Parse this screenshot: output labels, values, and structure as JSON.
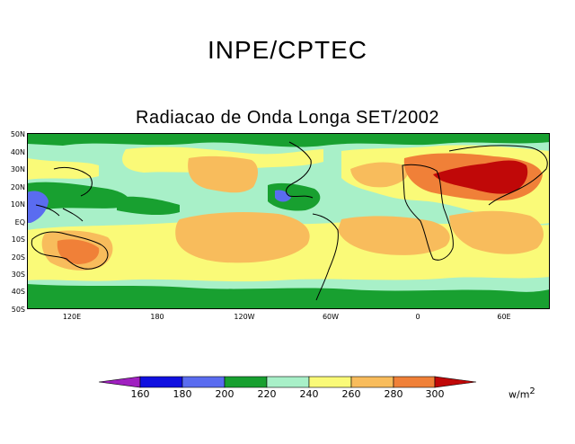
{
  "header": {
    "title": "INPE/CPTEC"
  },
  "map": {
    "subtitle": "Radiacao de Onda Longa SET/2002",
    "lat_labels": [
      "50N",
      "40N",
      "30N",
      "20N",
      "10N",
      "EQ",
      "10S",
      "20S",
      "30S",
      "40S",
      "50S"
    ],
    "lon_labels": [
      "120E",
      "180",
      "120W",
      "60W",
      "0",
      "60E"
    ]
  },
  "legend": {
    "levels": [
      "160",
      "180",
      "200",
      "220",
      "240",
      "260",
      "280",
      "300"
    ],
    "unit": "w/m",
    "unit_exp": "2",
    "colors": [
      "#a020c0",
      "#1010e0",
      "#5a6cf0",
      "#18a030",
      "#a8f0c8",
      "#fafa78",
      "#f8bc5c",
      "#f08038",
      "#c00808"
    ]
  }
}
